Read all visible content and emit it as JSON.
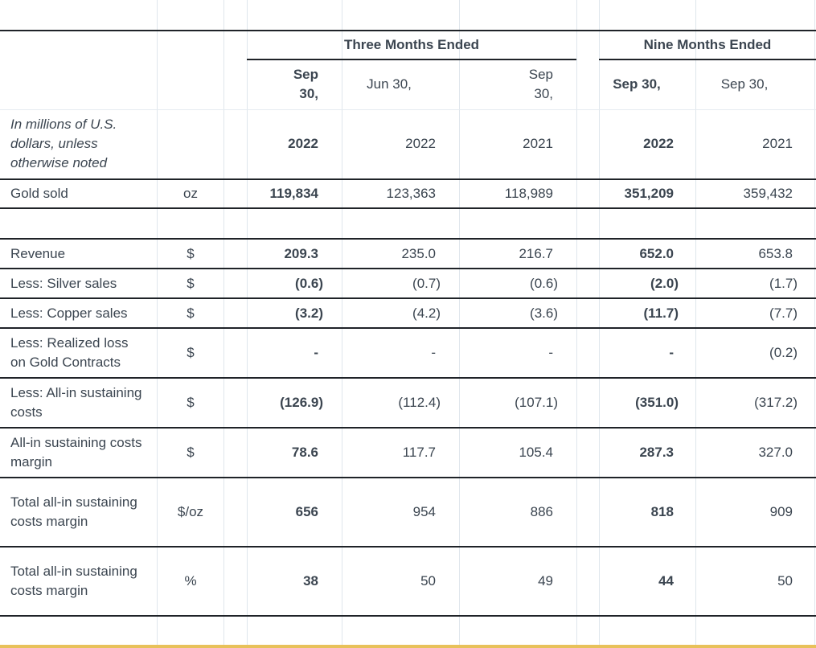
{
  "groups": {
    "three_months": "Three Months Ended",
    "nine_months": "Nine Months Ended"
  },
  "header": {
    "h1": {
      "line1": "Sep",
      "line2": "30,"
    },
    "h2": "Jun 30,",
    "h3": {
      "line1": "Sep",
      "line2": "30,"
    },
    "h4": "Sep 30,",
    "h5": "Sep 30,"
  },
  "label_note": "In millions of U.S. dollars, unless otherwise noted",
  "years": [
    "2022",
    "2022",
    "2021",
    "2022",
    "2021"
  ],
  "rows": [
    {
      "label": "Gold sold",
      "unit": "oz",
      "values": [
        "119,834",
        "123,363",
        "118,989",
        "351,209",
        "359,432"
      ]
    },
    {
      "label": "Revenue",
      "unit": "$",
      "values": [
        "209.3",
        "235.0",
        "216.7",
        "652.0",
        "653.8"
      ]
    },
    {
      "label": "Less: Silver sales",
      "unit": "$",
      "values": [
        "(0.6)",
        "(0.7)",
        "(0.6)",
        "(2.0)",
        "(1.7)"
      ]
    },
    {
      "label": "Less: Copper sales",
      "unit": "$",
      "values": [
        "(3.2)",
        "(4.2)",
        "(3.6)",
        "(11.7)",
        "(7.7)"
      ]
    },
    {
      "label": "Less: Realized loss on Gold Contracts",
      "unit": "$",
      "values": [
        "-",
        "-",
        "-",
        "-",
        "(0.2)"
      ]
    },
    {
      "label": "Less: All-in sustaining costs",
      "unit": "$",
      "values": [
        "(126.9)",
        "(112.4)",
        "(107.1)",
        "(351.0)",
        "(317.2)"
      ]
    },
    {
      "label": "All-in sustaining costs margin",
      "unit": "$",
      "values": [
        "78.6",
        "117.7",
        "105.4",
        "287.3",
        "327.0"
      ]
    },
    {
      "label": "Total all-in sustaining costs margin",
      "unit": "$/oz",
      "values": [
        "656",
        "954",
        "886",
        "818",
        "909"
      ]
    },
    {
      "label": "Total all-in sustaining costs margin",
      "unit": "%",
      "values": [
        "38",
        "50",
        "49",
        "44",
        "50"
      ]
    }
  ]
}
